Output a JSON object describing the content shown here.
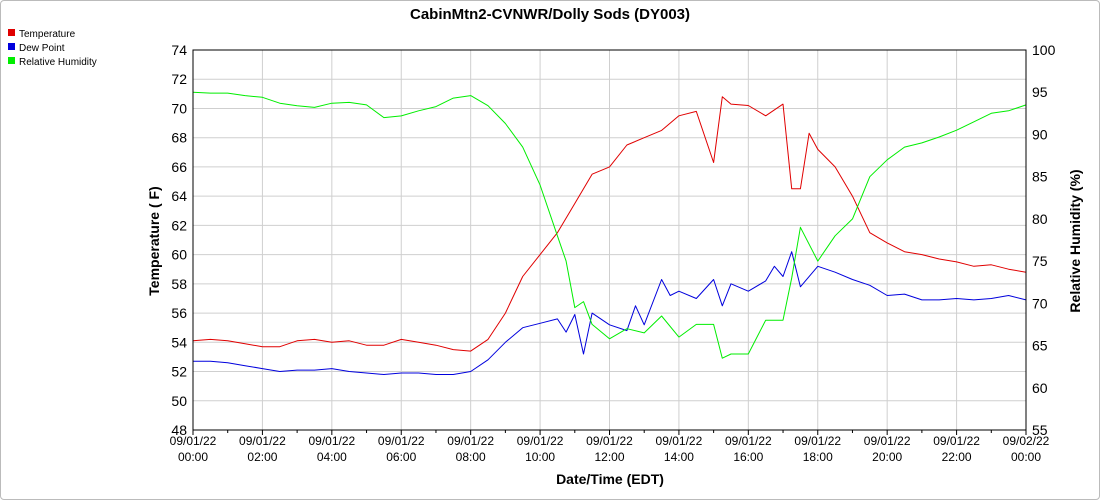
{
  "chart_data": {
    "type": "line",
    "title": "CabinMtn2-CVNWR/Dolly Sods (DY003)",
    "xlabel": "Date/Time (EDT)",
    "ylabel": "Temperature ( F)",
    "y2label": "Relative Humidity (%)",
    "ylim": [
      48,
      74
    ],
    "y2lim": [
      55,
      100
    ],
    "yticks": [
      "48",
      "50",
      "52",
      "54",
      "56",
      "58",
      "60",
      "62",
      "64",
      "66",
      "68",
      "70",
      "72",
      "74"
    ],
    "y2ticks": [
      "55",
      "60",
      "65",
      "70",
      "75",
      "80",
      "85",
      "90",
      "95",
      "100"
    ],
    "xticks": [
      {
        "date": "09/01/22",
        "time": "00:00"
      },
      {
        "date": "09/01/22",
        "time": "02:00"
      },
      {
        "date": "09/01/22",
        "time": "04:00"
      },
      {
        "date": "09/01/22",
        "time": "06:00"
      },
      {
        "date": "09/01/22",
        "time": "08:00"
      },
      {
        "date": "09/01/22",
        "time": "10:00"
      },
      {
        "date": "09/01/22",
        "time": "12:00"
      },
      {
        "date": "09/01/22",
        "time": "14:00"
      },
      {
        "date": "09/01/22",
        "time": "16:00"
      },
      {
        "date": "09/01/22",
        "time": "18:00"
      },
      {
        "date": "09/01/22",
        "time": "20:00"
      },
      {
        "date": "09/01/22",
        "time": "22:00"
      },
      {
        "date": "09/02/22",
        "time": "00:00"
      }
    ],
    "grid": true,
    "legend_position": "top-left",
    "series": [
      {
        "name": "Temperature",
        "color": "#e00000",
        "axis": "left",
        "points": [
          [
            0,
            54.1
          ],
          [
            0.5,
            54.2
          ],
          [
            1,
            54.1
          ],
          [
            1.5,
            53.9
          ],
          [
            2,
            53.7
          ],
          [
            2.5,
            53.7
          ],
          [
            3,
            54.1
          ],
          [
            3.5,
            54.2
          ],
          [
            4,
            54.0
          ],
          [
            4.5,
            54.1
          ],
          [
            5,
            53.8
          ],
          [
            5.5,
            53.8
          ],
          [
            6,
            54.2
          ],
          [
            6.5,
            54.0
          ],
          [
            7,
            53.8
          ],
          [
            7.5,
            53.5
          ],
          [
            8,
            53.4
          ],
          [
            8.5,
            54.2
          ],
          [
            9,
            56.0
          ],
          [
            9.5,
            58.5
          ],
          [
            10,
            60.0
          ],
          [
            10.5,
            61.5
          ],
          [
            11,
            63.5
          ],
          [
            11.5,
            65.5
          ],
          [
            12,
            66.0
          ],
          [
            12.5,
            67.5
          ],
          [
            13,
            68.0
          ],
          [
            13.5,
            68.5
          ],
          [
            14,
            69.5
          ],
          [
            14.5,
            69.8
          ],
          [
            15,
            66.3
          ],
          [
            15.25,
            70.8
          ],
          [
            15.5,
            70.3
          ],
          [
            16,
            70.2
          ],
          [
            16.5,
            69.5
          ],
          [
            17,
            70.3
          ],
          [
            17.25,
            64.5
          ],
          [
            17.5,
            64.5
          ],
          [
            17.75,
            68.3
          ],
          [
            18,
            67.2
          ],
          [
            18.5,
            66.0
          ],
          [
            19,
            64.0
          ],
          [
            19.5,
            61.5
          ],
          [
            20,
            60.8
          ],
          [
            20.5,
            60.2
          ],
          [
            21,
            60.0
          ],
          [
            21.5,
            59.7
          ],
          [
            22,
            59.5
          ],
          [
            22.5,
            59.2
          ],
          [
            23,
            59.3
          ],
          [
            23.5,
            59.0
          ],
          [
            24,
            58.8
          ]
        ]
      },
      {
        "name": "Dew Point",
        "color": "#0000dd",
        "axis": "left",
        "points": [
          [
            0,
            52.7
          ],
          [
            0.5,
            52.7
          ],
          [
            1,
            52.6
          ],
          [
            1.5,
            52.4
          ],
          [
            2,
            52.2
          ],
          [
            2.5,
            52.0
          ],
          [
            3,
            52.1
          ],
          [
            3.5,
            52.1
          ],
          [
            4,
            52.2
          ],
          [
            4.5,
            52.0
          ],
          [
            5,
            51.9
          ],
          [
            5.5,
            51.8
          ],
          [
            6,
            51.9
          ],
          [
            6.5,
            51.9
          ],
          [
            7,
            51.8
          ],
          [
            7.5,
            51.8
          ],
          [
            8,
            52.0
          ],
          [
            8.5,
            52.8
          ],
          [
            9,
            54.0
          ],
          [
            9.5,
            55.0
          ],
          [
            10,
            55.3
          ],
          [
            10.5,
            55.6
          ],
          [
            10.75,
            54.7
          ],
          [
            11,
            55.9
          ],
          [
            11.25,
            53.2
          ],
          [
            11.5,
            56.0
          ],
          [
            12,
            55.2
          ],
          [
            12.5,
            54.8
          ],
          [
            12.75,
            56.5
          ],
          [
            13,
            55.2
          ],
          [
            13.5,
            58.3
          ],
          [
            13.75,
            57.2
          ],
          [
            14,
            57.5
          ],
          [
            14.5,
            57.0
          ],
          [
            15,
            58.3
          ],
          [
            15.25,
            56.5
          ],
          [
            15.5,
            58.0
          ],
          [
            16,
            57.5
          ],
          [
            16.5,
            58.2
          ],
          [
            16.75,
            59.2
          ],
          [
            17,
            58.5
          ],
          [
            17.25,
            60.2
          ],
          [
            17.5,
            57.8
          ],
          [
            18,
            59.2
          ],
          [
            18.5,
            58.8
          ],
          [
            19,
            58.3
          ],
          [
            19.5,
            57.9
          ],
          [
            20,
            57.2
          ],
          [
            20.5,
            57.3
          ],
          [
            21,
            56.9
          ],
          [
            21.5,
            56.9
          ],
          [
            22,
            57.0
          ],
          [
            22.5,
            56.9
          ],
          [
            23,
            57.0
          ],
          [
            23.5,
            57.2
          ],
          [
            24,
            56.9
          ]
        ]
      },
      {
        "name": "Relative Humidity",
        "color": "#00ee00",
        "axis": "right",
        "points": [
          [
            0,
            95.0
          ],
          [
            0.5,
            94.9
          ],
          [
            1,
            94.9
          ],
          [
            1.5,
            94.6
          ],
          [
            2,
            94.4
          ],
          [
            2.5,
            93.7
          ],
          [
            3,
            93.4
          ],
          [
            3.5,
            93.2
          ],
          [
            4,
            93.7
          ],
          [
            4.5,
            93.8
          ],
          [
            5,
            93.5
          ],
          [
            5.5,
            92.0
          ],
          [
            6,
            92.2
          ],
          [
            6.5,
            92.8
          ],
          [
            7,
            93.3
          ],
          [
            7.5,
            94.3
          ],
          [
            8,
            94.6
          ],
          [
            8.5,
            93.4
          ],
          [
            9,
            91.3
          ],
          [
            9.5,
            88.5
          ],
          [
            10,
            84.0
          ],
          [
            10.5,
            78.0
          ],
          [
            10.75,
            75.0
          ],
          [
            11,
            69.5
          ],
          [
            11.25,
            70.2
          ],
          [
            11.5,
            67.5
          ],
          [
            12,
            65.8
          ],
          [
            12.5,
            67.0
          ],
          [
            13,
            66.5
          ],
          [
            13.5,
            68.5
          ],
          [
            14,
            66.0
          ],
          [
            14.5,
            67.5
          ],
          [
            15,
            67.5
          ],
          [
            15.25,
            63.5
          ],
          [
            15.5,
            64.0
          ],
          [
            16,
            64.0
          ],
          [
            16.5,
            68.0
          ],
          [
            17,
            68.0
          ],
          [
            17.25,
            73.0
          ],
          [
            17.5,
            79.0
          ],
          [
            18,
            75.0
          ],
          [
            18.5,
            78.0
          ],
          [
            19,
            80.0
          ],
          [
            19.5,
            85.0
          ],
          [
            20,
            87.0
          ],
          [
            20.5,
            88.5
          ],
          [
            21,
            89.0
          ],
          [
            21.5,
            89.7
          ],
          [
            22,
            90.5
          ],
          [
            22.5,
            91.5
          ],
          [
            23,
            92.5
          ],
          [
            23.5,
            92.8
          ],
          [
            24,
            93.5
          ]
        ]
      }
    ]
  },
  "legend": [
    {
      "label": "Temperature",
      "color": "#e00000"
    },
    {
      "label": "Dew Point",
      "color": "#0000dd"
    },
    {
      "label": "Relative Humidity",
      "color": "#00ee00"
    }
  ]
}
